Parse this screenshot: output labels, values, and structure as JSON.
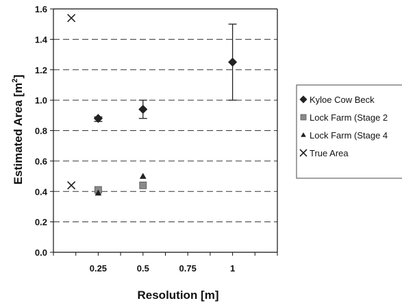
{
  "chart_data": {
    "type": "scatter",
    "title": "",
    "xlabel": "Resolution [m]",
    "ylabel": "Estimated Area [m²]",
    "ylabel_main": "Estimated Area [m",
    "ylabel_sup": "2",
    "ylabel_end": "]",
    "xlim": [
      0.0,
      1.25
    ],
    "ylim": [
      0.0,
      1.6
    ],
    "x_ticks": [
      0.25,
      0.5,
      0.75,
      1
    ],
    "x_tick_labels": [
      "0.25",
      "0.5",
      "0.75",
      "1"
    ],
    "y_ticks": [
      0.0,
      0.2,
      0.4,
      0.6,
      0.8,
      1.0,
      1.2,
      1.4,
      1.6
    ],
    "y_tick_labels": [
      "0.0",
      "0.2",
      "0.4",
      "0.6",
      "0.8",
      "1.0",
      "1.2",
      "1.4",
      "1.6"
    ],
    "grid": "horizontal dashed",
    "legend_position": "right",
    "series": [
      {
        "name": "Kyloe Cow Beck",
        "marker": "diamond",
        "color": "#222222",
        "points": [
          {
            "x": 0.25,
            "y": 0.88,
            "err_low": 0.86,
            "err_high": 0.89
          },
          {
            "x": 0.5,
            "y": 0.94,
            "err_low": 0.88,
            "err_high": 1.0
          },
          {
            "x": 1,
            "y": 1.25,
            "err_low": 1.0,
            "err_high": 1.5
          }
        ]
      },
      {
        "name": "Lock Farm (Stage 2",
        "marker": "square",
        "color": "#8a8a8a",
        "points": [
          {
            "x": 0.25,
            "y": 0.41
          },
          {
            "x": 0.5,
            "y": 0.44
          }
        ]
      },
      {
        "name": "Lock Farm (Stage 4",
        "marker": "triangle",
        "color": "#222222",
        "points": [
          {
            "x": 0.25,
            "y": 0.39
          },
          {
            "x": 0.5,
            "y": 0.5
          }
        ]
      },
      {
        "name": "True Area",
        "marker": "cross",
        "color": "#222222",
        "points": [
          {
            "x": 0.1,
            "y": 1.54
          },
          {
            "x": 0.1,
            "y": 0.44
          }
        ]
      }
    ]
  }
}
